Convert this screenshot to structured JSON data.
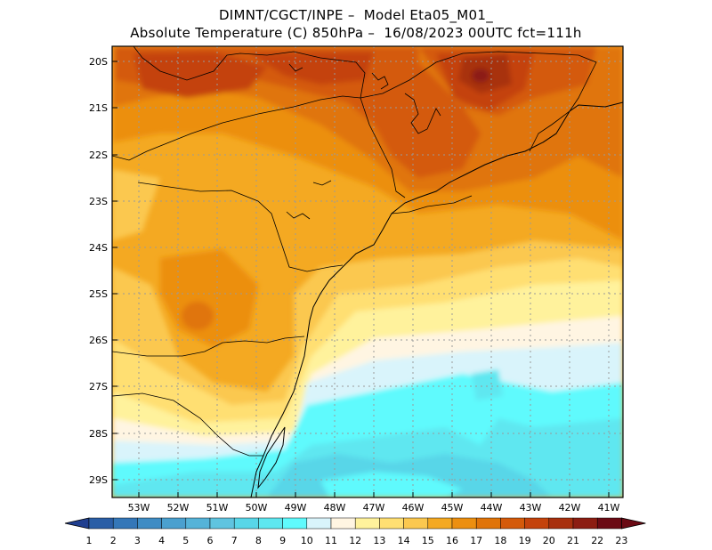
{
  "header": {
    "title_line1": "DIMNT/CGCT/INPE –  Model Eta05_M01_",
    "title_line2": "Absolute Temperature (C) 850hPa –  16/08/2023 00UTC fct=111h"
  },
  "map": {
    "lat_labels": [
      "20S",
      "21S",
      "22S",
      "23S",
      "24S",
      "25S",
      "26S",
      "27S",
      "28S",
      "29S"
    ],
    "lon_labels": [
      "53W",
      "52W",
      "51W",
      "50W",
      "49W",
      "48W",
      "47W",
      "46W",
      "45W",
      "44W",
      "43W",
      "42W",
      "41W"
    ]
  },
  "colorbar": {
    "labels": [
      "1",
      "2",
      "3",
      "4",
      "5",
      "6",
      "7",
      "8",
      "9",
      "10",
      "11",
      "12",
      "13",
      "14",
      "15",
      "16",
      "17",
      "18",
      "19",
      "20",
      "21",
      "22",
      "23"
    ],
    "colors": [
      "#1f3e8f",
      "#2a5ea6",
      "#3477b8",
      "#3f8cc4",
      "#4aa0cf",
      "#55b3d8",
      "#5fc4e0",
      "#58d6e8",
      "#5ee7f0",
      "#5ffafd",
      "#d9f4fb",
      "#fff5e2",
      "#fff29c",
      "#ffdf72",
      "#fbc84f",
      "#f4a922",
      "#ec8f10",
      "#e07409",
      "#d45a0a",
      "#c4430c",
      "#a8300e",
      "#8c1d12",
      "#6b0a14"
    ]
  }
}
